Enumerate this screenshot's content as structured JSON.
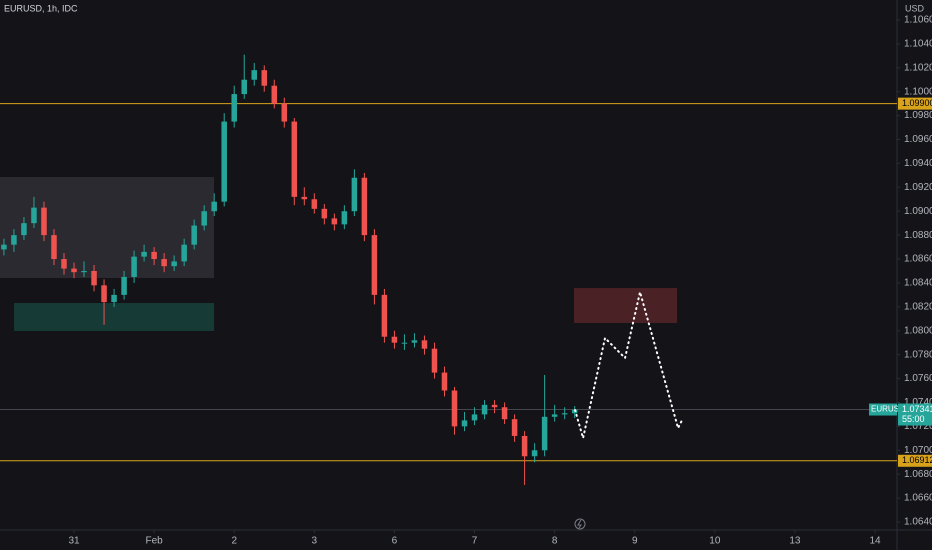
{
  "chart_data": {
    "type": "candlestick",
    "title": "EURUSD, 1h, IDC",
    "y_unit": "USD",
    "up_color": "#26a69a",
    "down_color": "#ef5350",
    "grid": false,
    "x": [
      0.125,
      0.25,
      0.375,
      0.5,
      0.625,
      0.75,
      0.875,
      1,
      1.125,
      1.25,
      1.375,
      1.5,
      1.625,
      1.75,
      1.875,
      2,
      2.125,
      2.25,
      2.375,
      2.5,
      2.625,
      2.75,
      2.875,
      3,
      3.125,
      3.25,
      3.375,
      3.5,
      3.625,
      3.75,
      3.875,
      4,
      4.125,
      4.25,
      4.375,
      4.5,
      4.625,
      4.75,
      4.875,
      5,
      5.125,
      5.25,
      5.375,
      5.5,
      5.625,
      5.75,
      5.875,
      6,
      6.125,
      6.25,
      6.375,
      6.5,
      6.625,
      6.75,
      6.875,
      7,
      7.125,
      7.25
    ],
    "open": [
      1.0868,
      1.0872,
      1.088,
      1.089,
      1.0903,
      1.088,
      1.086,
      1.0852,
      1.0849,
      1.085,
      1.0838,
      1.0824,
      1.083,
      1.0845,
      1.0862,
      1.0866,
      1.086,
      1.0854,
      1.0858,
      1.0872,
      1.0888,
      1.09,
      1.0908,
      1.0975,
      1.0998,
      1.101,
      1.1018,
      1.1005,
      1.099,
      1.0975,
      1.0912,
      1.091,
      1.0902,
      1.0894,
      1.0889,
      1.09,
      1.0928,
      1.088,
      1.083,
      1.0795,
      1.079,
      1.079,
      1.0792,
      1.0785,
      1.0765,
      1.075,
      1.072,
      1.0725,
      1.073,
      1.0738,
      1.0736,
      1.0726,
      1.0712,
      1.0695,
      1.07,
      1.0728,
      1.073,
      1.0731
    ],
    "high": [
      1.0877,
      1.0885,
      1.0895,
      1.0912,
      1.0908,
      1.0885,
      1.0865,
      1.0857,
      1.0858,
      1.0855,
      1.0843,
      1.0835,
      1.085,
      1.0867,
      1.0872,
      1.087,
      1.0865,
      1.0863,
      1.0877,
      1.0893,
      1.0905,
      1.0915,
      1.0982,
      1.1005,
      1.1031,
      1.1024,
      1.1022,
      1.101,
      1.0995,
      1.0978,
      1.092,
      1.0915,
      1.0906,
      1.0898,
      1.0905,
      1.0935,
      1.0932,
      1.0885,
      1.0835,
      1.08,
      1.0797,
      1.0798,
      1.0796,
      1.079,
      1.077,
      1.0753,
      1.0732,
      1.0736,
      1.0742,
      1.0742,
      1.074,
      1.073,
      1.0716,
      1.0706,
      1.0763,
      1.0738,
      1.0736,
      1.0737
    ],
    "low": [
      1.0863,
      1.0866,
      1.0876,
      1.0886,
      1.0875,
      1.0855,
      1.0847,
      1.0844,
      1.0845,
      1.0833,
      1.0805,
      1.082,
      1.0826,
      1.084,
      1.0858,
      1.0855,
      1.0849,
      1.085,
      1.0854,
      1.0868,
      1.0884,
      1.0896,
      1.0904,
      1.097,
      1.0994,
      1.1005,
      1.1,
      1.0986,
      1.097,
      1.0905,
      1.0905,
      1.0898,
      1.0889,
      1.0884,
      1.0885,
      1.0896,
      1.0875,
      1.0822,
      1.079,
      1.0785,
      1.0784,
      1.0786,
      1.078,
      1.076,
      1.0745,
      1.0713,
      1.0716,
      1.0721,
      1.0726,
      1.0731,
      1.0722,
      1.0707,
      1.0671,
      1.069,
      1.0695,
      1.0724,
      1.0726,
      1.0727
    ],
    "close": [
      1.0872,
      1.088,
      1.089,
      1.0903,
      1.088,
      1.086,
      1.0852,
      1.0849,
      1.085,
      1.0838,
      1.0824,
      1.083,
      1.0845,
      1.0862,
      1.0866,
      1.086,
      1.0854,
      1.0858,
      1.0872,
      1.0888,
      1.09,
      1.0908,
      1.0975,
      1.0998,
      1.101,
      1.1018,
      1.1005,
      1.099,
      1.0975,
      1.0912,
      1.091,
      1.0902,
      1.0894,
      1.0889,
      1.09,
      1.0928,
      1.088,
      1.083,
      1.0795,
      1.079,
      1.079,
      1.0792,
      1.0785,
      1.0765,
      1.075,
      1.072,
      1.0725,
      1.073,
      1.0738,
      1.0736,
      1.0726,
      1.0712,
      1.0695,
      1.07,
      1.0728,
      1.073,
      1.0731,
      1.0734
    ],
    "xlim": [
      0.076,
      11.274
    ],
    "xticks": [
      {
        "value": 1,
        "label": "31"
      },
      {
        "value": 2,
        "label": "Feb"
      },
      {
        "value": 3,
        "label": "2"
      },
      {
        "value": 4,
        "label": "3"
      },
      {
        "value": 5,
        "label": "6"
      },
      {
        "value": 6,
        "label": "7"
      },
      {
        "value": 7,
        "label": "8"
      },
      {
        "value": 8,
        "label": "9"
      },
      {
        "value": 9,
        "label": "10"
      },
      {
        "value": 10,
        "label": "13"
      },
      {
        "value": 11,
        "label": "14"
      }
    ],
    "ylim": [
      1.06333,
      1.10767
    ],
    "yticks": [
      {
        "value": 1.064,
        "label": "1.06400"
      },
      {
        "value": 1.066,
        "label": "1.06600"
      },
      {
        "value": 1.068,
        "label": "1.06800"
      },
      {
        "value": 1.07,
        "label": "1.07000"
      },
      {
        "value": 1.072,
        "label": "1.07200"
      },
      {
        "value": 1.074,
        "label": "1.07400"
      },
      {
        "value": 1.076,
        "label": "1.07600"
      },
      {
        "value": 1.078,
        "label": "1.07800"
      },
      {
        "value": 1.08,
        "label": "1.08000"
      },
      {
        "value": 1.082,
        "label": "1.08200"
      },
      {
        "value": 1.084,
        "label": "1.08400"
      },
      {
        "value": 1.086,
        "label": "1.08600"
      },
      {
        "value": 1.088,
        "label": "1.08800"
      },
      {
        "value": 1.09,
        "label": "1.09000"
      },
      {
        "value": 1.092,
        "label": "1.09200"
      },
      {
        "value": 1.094,
        "label": "1.09400"
      },
      {
        "value": 1.096,
        "label": "1.09600"
      },
      {
        "value": 1.098,
        "label": "1.09800"
      },
      {
        "value": 1.1,
        "label": "1.10000"
      },
      {
        "value": 1.102,
        "label": "1.10200"
      },
      {
        "value": 1.104,
        "label": "1.10400"
      },
      {
        "value": 1.106,
        "label": "1.10600"
      }
    ],
    "levels": [
      {
        "value": 1.099,
        "label": "1.09900",
        "color": "#d8a31a"
      },
      {
        "value": 1.06912,
        "label": "1.06912",
        "color": "#d8a31a"
      }
    ],
    "current": {
      "symbol": "EURUSD",
      "value": 1.07341,
      "label": "1.07341",
      "countdown": "55:00",
      "color": "#26a69a"
    },
    "zones": [
      {
        "x0": 0.076,
        "x1": 2.748,
        "low": 1.08441,
        "high": 1.09286,
        "color": "#2a2a30"
      },
      {
        "x0": 0.251,
        "x1": 2.748,
        "low": 1.07998,
        "high": 1.08232,
        "color": "#163a36"
      },
      {
        "x0": 7.242,
        "x1": 8.528,
        "low": 1.08065,
        "high": 1.08357,
        "color": "#4a2226"
      }
    ],
    "projection": {
      "x": [
        7.255,
        7.355,
        7.629,
        7.879,
        8.066,
        8.541,
        8.603
      ],
      "values": [
        1.07336,
        1.07102,
        1.07939,
        1.07772,
        1.08324,
        1.07186,
        1.07269
      ],
      "color": "#ffffff"
    }
  }
}
